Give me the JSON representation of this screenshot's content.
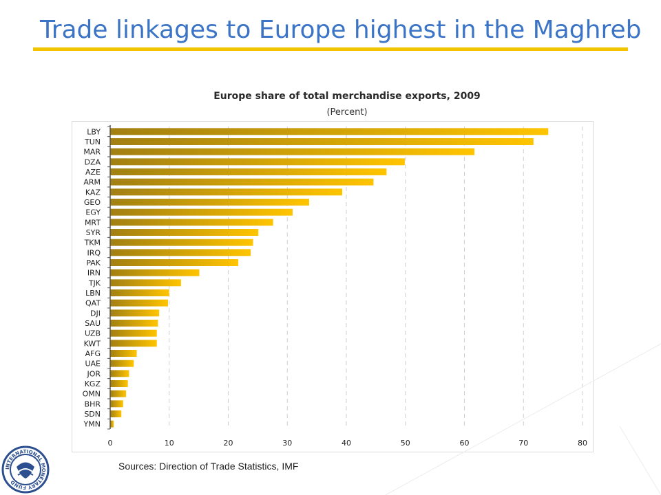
{
  "page": {
    "title": "Trade linkages to Europe highest in the Maghreb",
    "source": "Sources: Direction of Trade Statistics, IMF",
    "accent_color": "#3b74c6",
    "rule_color": "#f2c400",
    "logo_icon": "imf-seal-icon",
    "logo_text": "INTERNATIONAL MONETARY FUND"
  },
  "chart_data": {
    "type": "bar",
    "orientation": "horizontal",
    "title": "Europe share of total merchandise exports, 2009",
    "subtitle": "(Percent)",
    "xlabel": "",
    "ylabel": "",
    "xlim": [
      0,
      80
    ],
    "xticks": [
      0,
      10,
      20,
      30,
      40,
      50,
      60,
      70,
      80
    ],
    "grid": "vertical dashed",
    "legend": "none",
    "bar_color_start": "#a17f12",
    "bar_color_end": "#ffc400",
    "categories": [
      "LBY",
      "TUN",
      "MAR",
      "DZA",
      "AZE",
      "ARM",
      "KAZ",
      "GEO",
      "EGY",
      "MRT",
      "SYR",
      "TKM",
      "IRQ",
      "PAK",
      "IRN",
      "TJK",
      "LBN",
      "QAT",
      "DJI",
      "SAU",
      "UZB",
      "KWT",
      "AFG",
      "UAE",
      "JOR",
      "KGZ",
      "OMN",
      "BHR",
      "SDN",
      "YMN"
    ],
    "values": [
      74.2,
      71.7,
      61.7,
      49.9,
      46.8,
      44.6,
      39.3,
      33.7,
      30.9,
      27.6,
      25.1,
      24.2,
      23.8,
      21.7,
      15.1,
      12.0,
      10.0,
      9.8,
      8.3,
      8.1,
      7.9,
      7.9,
      4.5,
      4.0,
      3.2,
      3.0,
      2.7,
      2.2,
      1.9,
      0.6
    ]
  }
}
